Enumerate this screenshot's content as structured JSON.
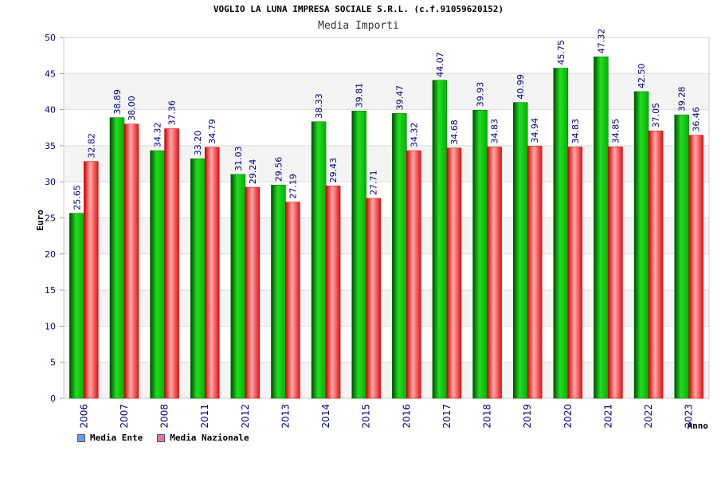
{
  "chart_data": {
    "type": "bar",
    "title": "VOGLIO LA LUNA IMPRESA SOCIALE S.R.L. (c.f.91059620152)",
    "subtitle": "Media Importi",
    "xlabel": "Anno",
    "ylabel": "Euro",
    "ylim": [
      0,
      50
    ],
    "yticks": [
      0,
      5,
      10,
      15,
      20,
      25,
      30,
      35,
      40,
      45,
      50
    ],
    "grid": true,
    "legend_position": "bottom-left",
    "categories": [
      "2006",
      "2007",
      "2008",
      "2011",
      "2012",
      "2013",
      "2014",
      "2015",
      "2016",
      "2017",
      "2018",
      "2019",
      "2020",
      "2021",
      "2022",
      "2023"
    ],
    "series": [
      {
        "name": "Media Ente",
        "legend_color": "#6699ee",
        "values": [
          25.65,
          38.89,
          34.32,
          33.2,
          31.03,
          29.56,
          38.33,
          39.81,
          39.47,
          44.07,
          39.93,
          40.99,
          45.75,
          47.32,
          42.5,
          39.28
        ],
        "labels": [
          "25.65",
          "38.89",
          "34.32",
          "33.20",
          "31.03",
          "29.56",
          "38.33",
          "39.81",
          "39.47",
          "44.07",
          "39.93",
          "40.99",
          "45.75",
          "47.32",
          "42.50",
          "39.28"
        ]
      },
      {
        "name": "Media Nazionale",
        "legend_color": "#dd77aa",
        "values": [
          32.82,
          38.0,
          37.36,
          34.79,
          29.24,
          27.19,
          29.43,
          27.71,
          34.32,
          34.68,
          34.83,
          34.94,
          34.83,
          34.85,
          37.05,
          36.46
        ],
        "labels": [
          "32.82",
          "38.00",
          "37.36",
          "34.79",
          "29.24",
          "27.19",
          "29.43",
          "27.71",
          "34.32",
          "34.68",
          "34.83",
          "34.94",
          "34.83",
          "34.85",
          "37.05",
          "36.46"
        ]
      }
    ]
  }
}
